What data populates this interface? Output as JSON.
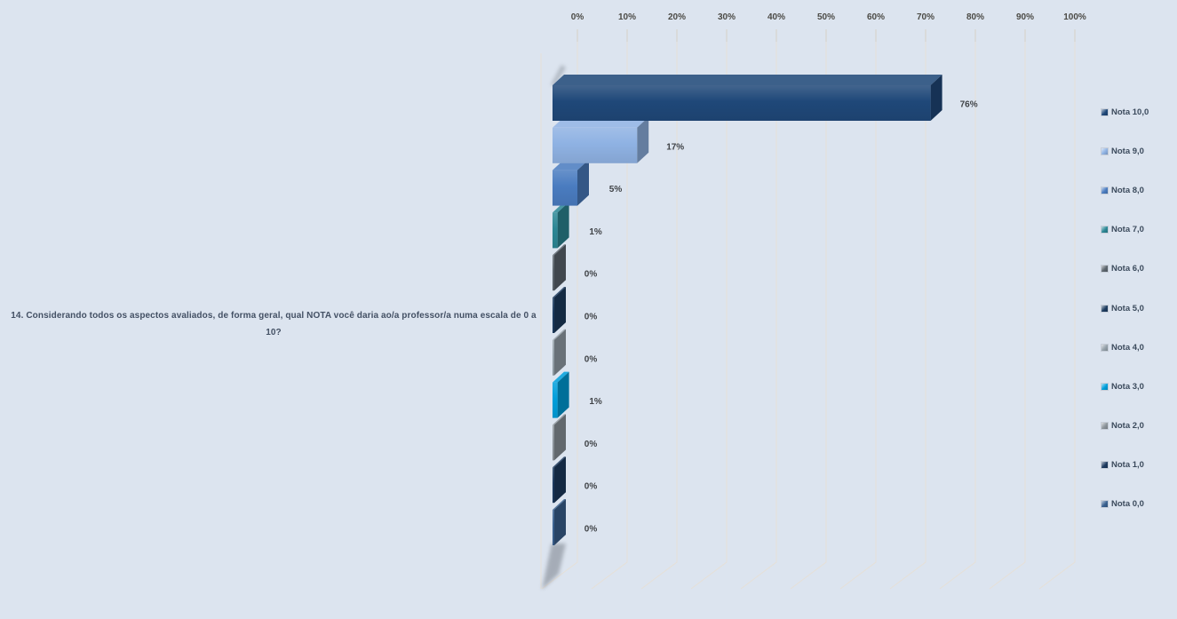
{
  "question": {
    "text": "14. Considerando todos os aspectos avaliados, de forma geral, qual NOTA você daria ao/a professor/a numa escala de 0 a 10?"
  },
  "chart_data": {
    "type": "bar",
    "variant": "3d-horizontal",
    "title": "",
    "xlabel": "",
    "ylabel": "",
    "categories": [
      "Nota 10,0",
      "Nota 9,0",
      "Nota 8,0",
      "Nota 7,0",
      "Nota 6,0",
      "Nota 5,0",
      "Nota 4,0",
      "Nota 3,0",
      "Nota 2,0",
      "Nota 1,0",
      "Nota 0,0"
    ],
    "values": [
      76,
      17,
      5,
      1,
      0,
      0,
      0,
      1,
      0,
      0,
      0
    ],
    "data_labels": [
      "76%",
      "17%",
      "5%",
      "1%",
      "0%",
      "0%",
      "0%",
      "1%",
      "0%",
      "0%",
      "0%"
    ],
    "colors": [
      "#1f4879",
      "#8fb2e3",
      "#4a7cc0",
      "#2c8795",
      "#5d666f",
      "#1d3c60",
      "#96a2ab",
      "#009fdb",
      "#8c949b",
      "#1d3a5f",
      "#3a6190"
    ],
    "x_axis": {
      "position": "top",
      "min": 0,
      "max": 100,
      "tick_step": 10,
      "tick_labels": [
        "0%",
        "10%",
        "20%",
        "30%",
        "40%",
        "50%",
        "60%",
        "70%",
        "80%",
        "90%",
        "100%"
      ],
      "grid": true
    },
    "legend": {
      "position": "right"
    }
  },
  "theme": {
    "background": "#dce4ef",
    "gridline": "#e6e0d7",
    "tick": "#d6d0c6",
    "axis_text": "#4b4a45",
    "label_text": "#3f4246",
    "legend_text": "#3b4a5c",
    "question_text": "#435064"
  }
}
